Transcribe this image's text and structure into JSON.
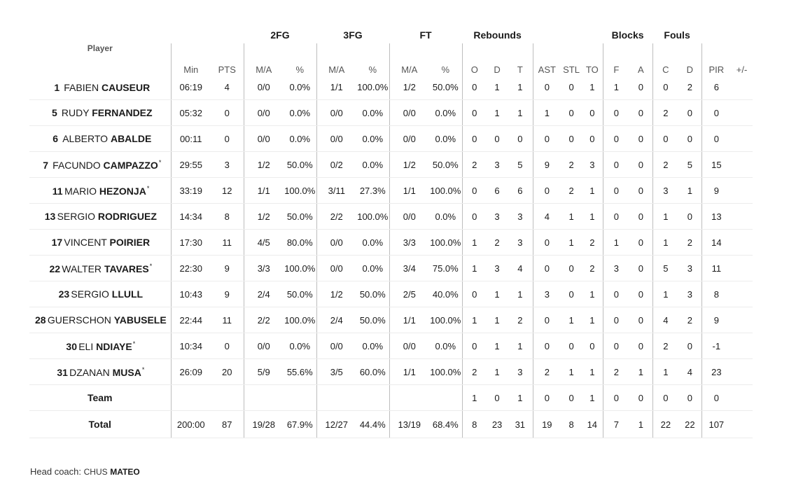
{
  "groups": {
    "fg2": "2FG",
    "fg3": "3FG",
    "ft": "FT",
    "rebounds": "Rebounds",
    "blocks": "Blocks",
    "fouls": "Fouls"
  },
  "columns": {
    "player": "Player",
    "min": "Min",
    "pts": "PTS",
    "fg2_ma": "M/A",
    "fg2_pct": "%",
    "fg3_ma": "M/A",
    "fg3_pct": "%",
    "ft_ma": "M/A",
    "ft_pct": "%",
    "reb_o": "O",
    "reb_d": "D",
    "reb_t": "T",
    "ast": "AST",
    "stl": "STL",
    "to": "TO",
    "blk_f": "F",
    "blk_a": "A",
    "foul_c": "C",
    "foul_d": "D",
    "pir": "PIR",
    "pm": "+/-"
  },
  "players": [
    {
      "number": "1",
      "first": "Fabien",
      "last": "CAUSEUR",
      "starter": false,
      "stats": [
        "06:19",
        "4",
        "0/0",
        "0.0%",
        "1/1",
        "100.0%",
        "1/2",
        "50.0%",
        "0",
        "1",
        "1",
        "0",
        "0",
        "1",
        "1",
        "0",
        "0",
        "2",
        "6",
        ""
      ]
    },
    {
      "number": "5",
      "first": "Rudy",
      "last": "FERNANDEZ",
      "starter": false,
      "stats": [
        "05:32",
        "0",
        "0/0",
        "0.0%",
        "0/0",
        "0.0%",
        "0/0",
        "0.0%",
        "0",
        "1",
        "1",
        "1",
        "0",
        "0",
        "0",
        "0",
        "2",
        "0",
        "0",
        ""
      ]
    },
    {
      "number": "6",
      "first": "Alberto",
      "last": "ABALDE",
      "starter": false,
      "stats": [
        "00:11",
        "0",
        "0/0",
        "0.0%",
        "0/0",
        "0.0%",
        "0/0",
        "0.0%",
        "0",
        "0",
        "0",
        "0",
        "0",
        "0",
        "0",
        "0",
        "0",
        "0",
        "0",
        ""
      ]
    },
    {
      "number": "7",
      "first": "Facundo",
      "last": "CAMPAZZO",
      "starter": true,
      "stats": [
        "29:55",
        "3",
        "1/2",
        "50.0%",
        "0/2",
        "0.0%",
        "1/2",
        "50.0%",
        "2",
        "3",
        "5",
        "9",
        "2",
        "3",
        "0",
        "0",
        "2",
        "5",
        "15",
        ""
      ]
    },
    {
      "number": "11",
      "first": "Mario",
      "last": "HEZONJA",
      "starter": true,
      "stats": [
        "33:19",
        "12",
        "1/1",
        "100.0%",
        "3/11",
        "27.3%",
        "1/1",
        "100.0%",
        "0",
        "6",
        "6",
        "0",
        "2",
        "1",
        "0",
        "0",
        "3",
        "1",
        "9",
        ""
      ]
    },
    {
      "number": "13",
      "first": "Sergio",
      "last": "RODRIGUEZ",
      "starter": false,
      "stats": [
        "14:34",
        "8",
        "1/2",
        "50.0%",
        "2/2",
        "100.0%",
        "0/0",
        "0.0%",
        "0",
        "3",
        "3",
        "4",
        "1",
        "1",
        "0",
        "0",
        "1",
        "0",
        "13",
        ""
      ]
    },
    {
      "number": "17",
      "first": "Vincent",
      "last": "POIRIER",
      "starter": false,
      "stats": [
        "17:30",
        "11",
        "4/5",
        "80.0%",
        "0/0",
        "0.0%",
        "3/3",
        "100.0%",
        "1",
        "2",
        "3",
        "0",
        "1",
        "2",
        "1",
        "0",
        "1",
        "2",
        "14",
        ""
      ]
    },
    {
      "number": "22",
      "first": "Walter",
      "last": "TAVARES",
      "starter": true,
      "stats": [
        "22:30",
        "9",
        "3/3",
        "100.0%",
        "0/0",
        "0.0%",
        "3/4",
        "75.0%",
        "1",
        "3",
        "4",
        "0",
        "0",
        "2",
        "3",
        "0",
        "5",
        "3",
        "11",
        ""
      ]
    },
    {
      "number": "23",
      "first": "Sergio",
      "last": "LLULL",
      "starter": false,
      "stats": [
        "10:43",
        "9",
        "2/4",
        "50.0%",
        "1/2",
        "50.0%",
        "2/5",
        "40.0%",
        "0",
        "1",
        "1",
        "3",
        "0",
        "1",
        "0",
        "0",
        "1",
        "3",
        "8",
        ""
      ]
    },
    {
      "number": "28",
      "first": "Guerschon",
      "last": "YABUSELE",
      "starter": false,
      "stats": [
        "22:44",
        "11",
        "2/2",
        "100.0%",
        "2/4",
        "50.0%",
        "1/1",
        "100.0%",
        "1",
        "1",
        "2",
        "0",
        "1",
        "1",
        "0",
        "0",
        "4",
        "2",
        "9",
        ""
      ]
    },
    {
      "number": "30",
      "first": "Eli",
      "last": "NDIAYE",
      "starter": true,
      "stats": [
        "10:34",
        "0",
        "0/0",
        "0.0%",
        "0/0",
        "0.0%",
        "0/0",
        "0.0%",
        "0",
        "1",
        "1",
        "0",
        "0",
        "0",
        "0",
        "0",
        "2",
        "0",
        "-1",
        ""
      ]
    },
    {
      "number": "31",
      "first": "Dzanan",
      "last": "MUSA",
      "starter": true,
      "stats": [
        "26:09",
        "20",
        "5/9",
        "55.6%",
        "3/5",
        "60.0%",
        "1/1",
        "100.0%",
        "2",
        "1",
        "3",
        "2",
        "1",
        "1",
        "2",
        "1",
        "1",
        "4",
        "23",
        ""
      ]
    }
  ],
  "team": {
    "label": "Team",
    "stats": [
      "",
      "",
      "",
      "",
      "",
      "",
      "",
      "",
      "1",
      "0",
      "1",
      "0",
      "0",
      "1",
      "0",
      "0",
      "0",
      "0",
      "0",
      ""
    ]
  },
  "total": {
    "label": "Total",
    "stats": [
      "200:00",
      "87",
      "19/28",
      "67.9%",
      "12/27",
      "44.4%",
      "13/19",
      "68.4%",
      "8",
      "23",
      "31",
      "19",
      "8",
      "14",
      "7",
      "1",
      "22",
      "22",
      "107",
      ""
    ]
  },
  "coach": {
    "prefix": "Head coach: ",
    "first": "Chus",
    "last": "MATEO"
  },
  "starter_mark": "*"
}
